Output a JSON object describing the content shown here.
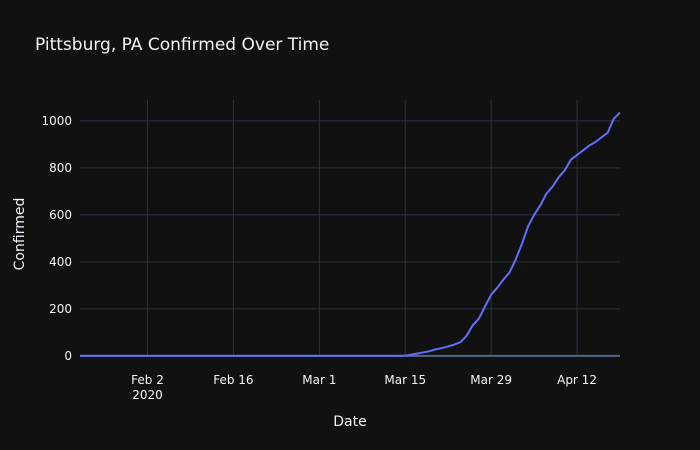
{
  "chart_data": {
    "type": "line",
    "title": "Pittsburg, PA Confirmed Over Time",
    "x_label": "Date",
    "y_label": "Confirmed",
    "x": [
      "2020-01-22",
      "2020-01-23",
      "2020-01-24",
      "2020-01-25",
      "2020-01-26",
      "2020-01-27",
      "2020-01-28",
      "2020-01-29",
      "2020-01-30",
      "2020-01-31",
      "2020-02-01",
      "2020-02-02",
      "2020-02-03",
      "2020-02-04",
      "2020-02-05",
      "2020-02-06",
      "2020-02-07",
      "2020-02-08",
      "2020-02-09",
      "2020-02-10",
      "2020-02-11",
      "2020-02-12",
      "2020-02-13",
      "2020-02-14",
      "2020-02-15",
      "2020-02-16",
      "2020-02-17",
      "2020-02-18",
      "2020-02-19",
      "2020-02-20",
      "2020-02-21",
      "2020-02-22",
      "2020-02-23",
      "2020-02-24",
      "2020-02-25",
      "2020-02-26",
      "2020-02-27",
      "2020-02-28",
      "2020-02-29",
      "2020-03-01",
      "2020-03-02",
      "2020-03-03",
      "2020-03-04",
      "2020-03-05",
      "2020-03-06",
      "2020-03-07",
      "2020-03-08",
      "2020-03-09",
      "2020-03-10",
      "2020-03-11",
      "2020-03-12",
      "2020-03-13",
      "2020-03-14",
      "2020-03-15",
      "2020-03-16",
      "2020-03-17",
      "2020-03-18",
      "2020-03-19",
      "2020-03-20",
      "2020-03-21",
      "2020-03-22",
      "2020-03-23",
      "2020-03-24",
      "2020-03-25",
      "2020-03-26",
      "2020-03-27",
      "2020-03-28",
      "2020-03-29",
      "2020-03-30",
      "2020-03-31",
      "2020-04-01",
      "2020-04-02",
      "2020-04-03",
      "2020-04-04",
      "2020-04-05",
      "2020-04-06",
      "2020-04-07",
      "2020-04-08",
      "2020-04-09",
      "2020-04-10",
      "2020-04-11",
      "2020-04-12",
      "2020-04-13",
      "2020-04-14",
      "2020-04-15",
      "2020-04-16",
      "2020-04-17",
      "2020-04-18",
      "2020-04-19"
    ],
    "series": [
      {
        "name": "Confirmed",
        "color": "#636efa",
        "values": [
          0,
          0,
          0,
          0,
          0,
          0,
          0,
          0,
          0,
          0,
          0,
          0,
          0,
          0,
          0,
          0,
          0,
          0,
          0,
          0,
          0,
          0,
          0,
          0,
          0,
          0,
          0,
          0,
          0,
          0,
          0,
          0,
          0,
          0,
          0,
          0,
          0,
          0,
          0,
          0,
          0,
          0,
          0,
          0,
          0,
          0,
          0,
          0,
          0,
          0,
          0,
          0,
          0,
          1,
          5,
          10,
          15,
          20,
          28,
          33,
          40,
          48,
          58,
          85,
          130,
          158,
          210,
          260,
          290,
          325,
          355,
          410,
          475,
          550,
          600,
          640,
          690,
          720,
          760,
          790,
          835,
          855,
          875,
          895,
          910,
          930,
          950,
          1010,
          1035
        ]
      }
    ],
    "xlim": [
      "2020-01-22",
      "2020-04-19"
    ],
    "xticks": [
      {
        "value": "2020-02-02",
        "label": "Feb 2\n2020"
      },
      {
        "value": "2020-02-16",
        "label": "Feb 16"
      },
      {
        "value": "2020-03-01",
        "label": "Mar 1"
      },
      {
        "value": "2020-03-15",
        "label": "Mar 15"
      },
      {
        "value": "2020-03-29",
        "label": "Mar 29"
      },
      {
        "value": "2020-04-12",
        "label": "Apr 12"
      }
    ],
    "ylim": [
      -5,
      1089
    ],
    "yticks": [
      0,
      200,
      400,
      600,
      800,
      1000
    ],
    "grid": true
  }
}
